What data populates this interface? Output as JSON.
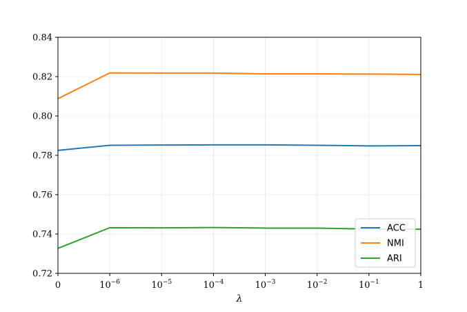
{
  "chart_data": {
    "type": "line",
    "xlabel": "λ",
    "ylabel": "",
    "title": "",
    "x_tick_labels": [
      {
        "base": "0",
        "exp": ""
      },
      {
        "base": "10",
        "exp": "−6"
      },
      {
        "base": "10",
        "exp": "−5"
      },
      {
        "base": "10",
        "exp": "−4"
      },
      {
        "base": "10",
        "exp": "−3"
      },
      {
        "base": "10",
        "exp": "−2"
      },
      {
        "base": "10",
        "exp": "−1"
      },
      {
        "base": "1",
        "exp": ""
      }
    ],
    "ylim": [
      0.72,
      0.84
    ],
    "y_ticks": [
      0.72,
      0.74,
      0.76,
      0.78,
      0.8,
      0.82,
      0.84
    ],
    "y_tick_labels": [
      "0.72",
      "0.74",
      "0.76",
      "0.78",
      "0.80",
      "0.82",
      "0.84"
    ],
    "grid": true,
    "legend_position": "lower-right",
    "series": [
      {
        "name": "ACC",
        "color": "#1f77b4",
        "values": [
          0.7825,
          0.7851,
          0.7852,
          0.7853,
          0.7853,
          0.7851,
          0.7848,
          0.7849
        ]
      },
      {
        "name": "NMI",
        "color": "#ff7f0e",
        "values": [
          0.8088,
          0.8219,
          0.8218,
          0.8218,
          0.8214,
          0.8214,
          0.8213,
          0.8211
        ]
      },
      {
        "name": "ARI",
        "color": "#2ca02c",
        "values": [
          0.7327,
          0.7432,
          0.7431,
          0.7433,
          0.743,
          0.743,
          0.7425,
          0.7424
        ]
      }
    ]
  }
}
